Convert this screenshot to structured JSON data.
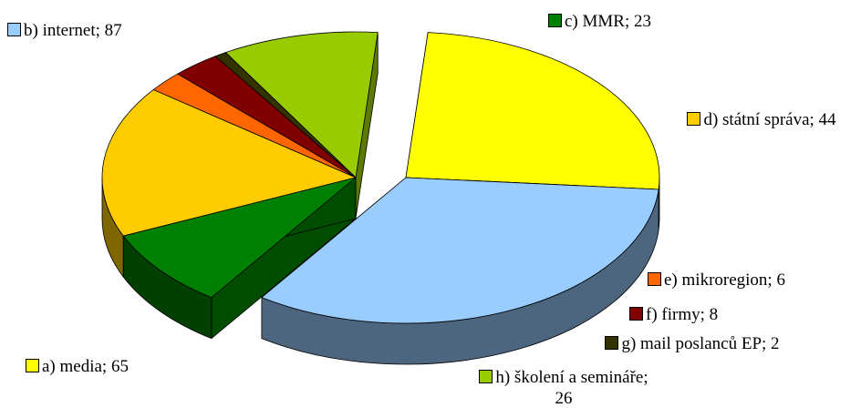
{
  "chart_data": {
    "type": "pie",
    "labels": [
      "a) media; 65",
      "b) internet; 87",
      "c) MMR; 23",
      "d) státní správa; 44",
      "e) mikroregion; 6",
      "f) firmy; 8",
      "g) mail poslanců EP; 2",
      "h) školení a semináře; 26"
    ],
    "values": [
      65,
      87,
      23,
      44,
      6,
      8,
      2,
      26
    ],
    "colors": [
      "#ffff00",
      "#99ccff",
      "#008000",
      "#ffcc00",
      "#ff6600",
      "#800000",
      "#333300",
      "#99cc00"
    ]
  }
}
